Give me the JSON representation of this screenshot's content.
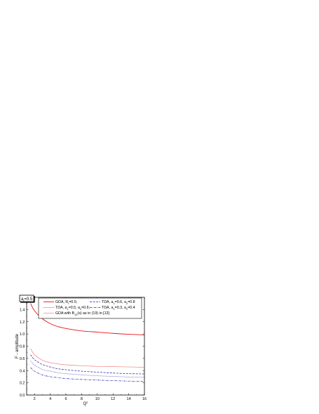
{
  "chart_data": {
    "type": "line",
    "xlabel": "Q",
    "xlabel_sup": "2",
    "ylabel": "F - amplitude",
    "xlim": [
      1,
      16
    ],
    "ylim": [
      0,
      1.6
    ],
    "x_ticks": [
      "2",
      "4",
      "6",
      "8",
      "10",
      "12",
      "14",
      "16"
    ],
    "y_ticks": [
      "0.0",
      "0.2",
      "0.4",
      "0.6",
      "0.8",
      "1.0",
      "1.2",
      "1.4"
    ],
    "annotation": {
      "base": "a",
      "sub": "t",
      "rest": "=0.5"
    },
    "legend_placement": "top",
    "series": [
      {
        "legend": {
          "base": "GDA, R",
          "sub": "t",
          "rest": "=0.5;"
        },
        "color": "#e8141c",
        "dash": "solid",
        "width": 0.9,
        "x": [
          1.5,
          2,
          3,
          4,
          5,
          6,
          8,
          10,
          12,
          14,
          16
        ],
        "y": [
          1.5,
          1.38,
          1.25,
          1.17,
          1.12,
          1.09,
          1.05,
          1.03,
          1.01,
          0.995,
          0.985
        ]
      },
      {
        "legend": {
          "base": "TDA, a",
          "sub": "1",
          "rest": "=0.6, a",
          "sub2": "2",
          "rest2": "=0.8"
        },
        "color": "#1c1ca8",
        "dash": "dash",
        "width": 0.7,
        "x": [
          1.5,
          2,
          3,
          4,
          5,
          6,
          8,
          10,
          12,
          14,
          16
        ],
        "y": [
          0.66,
          0.58,
          0.5,
          0.46,
          0.43,
          0.415,
          0.39,
          0.375,
          0.36,
          0.35,
          0.345
        ]
      },
      {
        "legend": {
          "base": "TDA, a",
          "sub": "1",
          "rest": "=0.5, a",
          "sub2": "2",
          "rest2": "=0.6;"
        },
        "color": "#1c1ca8",
        "dash": "dot",
        "width": 0.7,
        "x": [
          1.5,
          2,
          3,
          4,
          5,
          6,
          8,
          10,
          12,
          14,
          16
        ],
        "y": [
          0.56,
          0.49,
          0.42,
          0.39,
          0.365,
          0.35,
          0.33,
          0.315,
          0.305,
          0.295,
          0.29
        ]
      },
      {
        "legend": {
          "base": "TDA, a",
          "sub": "1",
          "rest": "=0.3, a",
          "sub2": "2",
          "rest2": "=0.4"
        },
        "color": "#1c1ca8",
        "dash": "dashdot",
        "width": 0.7,
        "x": [
          1.5,
          2,
          3,
          4,
          5,
          6,
          8,
          10,
          12,
          14,
          16
        ],
        "y": [
          0.45,
          0.39,
          0.33,
          0.3,
          0.285,
          0.27,
          0.255,
          0.245,
          0.235,
          0.228,
          0.222
        ]
      },
      {
        "legend": {
          "base": "GDA with B",
          "sub": "12",
          "rest": "(s) as in (19) in [13]"
        },
        "color": "#f08080",
        "dash": "solid",
        "width": 0.7,
        "x": [
          1.5,
          2,
          3,
          4,
          5,
          6,
          8,
          10,
          12,
          14,
          16
        ],
        "y": [
          0.76,
          0.66,
          0.57,
          0.53,
          0.51,
          0.495,
          0.48,
          0.47,
          0.465,
          0.46,
          0.455
        ]
      }
    ]
  }
}
